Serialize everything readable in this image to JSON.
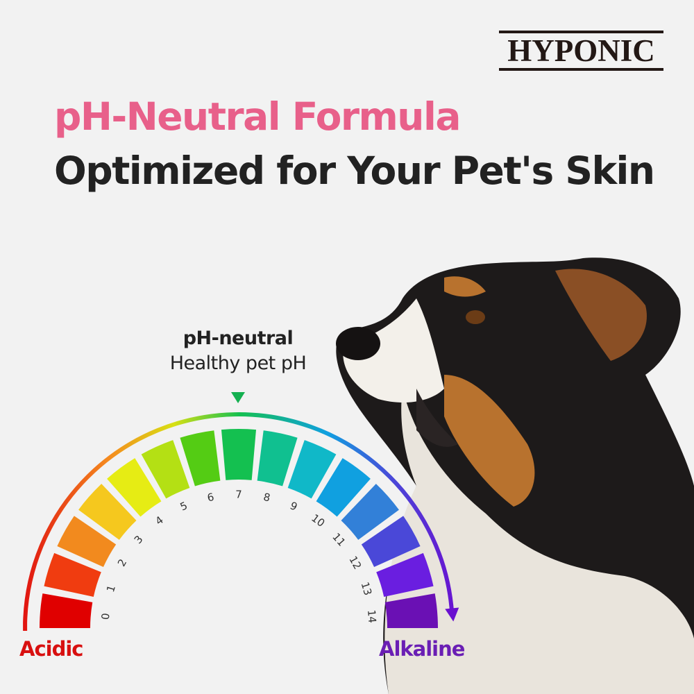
{
  "brand": {
    "logo_text": "HYPONIC"
  },
  "headline": {
    "line1": "pH-Neutral Formula",
    "line2": "Optimized for Your Pet's Skin",
    "line1_color": "#e8608a",
    "line2_color": "#222222"
  },
  "indicator": {
    "title": "pH-neutral",
    "subtitle": "Healthy pet pH",
    "value": 7,
    "marker_color": "#14b050"
  },
  "scale": {
    "labels": [
      "0",
      "1",
      "2",
      "3",
      "4",
      "5",
      "6",
      "7",
      "8",
      "9",
      "10",
      "11",
      "12",
      "13",
      "14"
    ],
    "colors": [
      "#e00000",
      "#f03c10",
      "#f28a1e",
      "#f5c81e",
      "#e6ec14",
      "#b4e014",
      "#54cc14",
      "#14c050",
      "#10c090",
      "#10b8c8",
      "#10a0e0",
      "#3280d8",
      "#4a48d8",
      "#6a1ee0",
      "#6a10b4"
    ],
    "left_label": "Acidic",
    "right_label": "Alkaline",
    "left_color": "#d81010",
    "right_color": "#6a1eb4"
  },
  "photo": {
    "subject": "dog-photo"
  }
}
